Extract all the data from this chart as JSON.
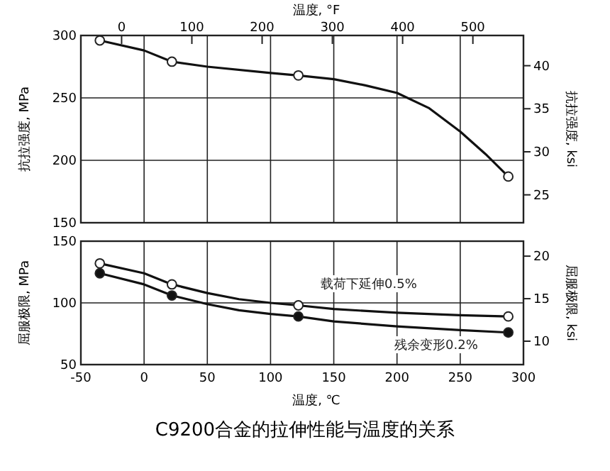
{
  "chart_data": [
    {
      "type": "line",
      "x2label": "温度, °F",
      "ylabel": "抗拉强度, MPa",
      "y2label": "抗拉强度, ksi",
      "xlim": [
        -50,
        300
      ],
      "xticks": [
        -50,
        0,
        50,
        100,
        150,
        200,
        250,
        300
      ],
      "tick_labels": "y",
      "x2lim": [
        -58,
        572
      ],
      "x2ticks": [
        0,
        100,
        200,
        300,
        400,
        500
      ],
      "ylim": [
        150,
        300
      ],
      "yticks": [
        150,
        200,
        250,
        300
      ],
      "y2lim": [
        21.76,
        43.51
      ],
      "y2ticks": [
        25,
        30,
        35,
        40
      ],
      "grid": true,
      "series": [
        {
          "color": "#111111",
          "marker": "none",
          "x": [
            -35,
            0,
            22,
            50,
            100,
            122,
            150,
            175,
            200,
            225,
            250,
            270,
            288
          ],
          "values": [
            296,
            288,
            279,
            275,
            270,
            268,
            265,
            260,
            254,
            242,
            223,
            205,
            187
          ]
        },
        {
          "type": "scatter",
          "color": "#ffffff",
          "marker": "circle",
          "x": [
            -35,
            22,
            122,
            288
          ],
          "values": [
            296,
            279,
            268,
            187
          ]
        }
      ]
    },
    {
      "type": "line",
      "xlabel": "温度, ℃",
      "ylabel": "屈服极限, MPa",
      "y2label": "屈服极限, ksi",
      "title": "C9200合金的拉伸性能与温度的关系",
      "xlim": [
        -50,
        300
      ],
      "xticks": [
        -50,
        0,
        50,
        100,
        150,
        200,
        250,
        300
      ],
      "ylim": [
        50,
        150
      ],
      "yticks": [
        50,
        100,
        150
      ],
      "y2lim": [
        7.25,
        21.76
      ],
      "y2ticks": [
        10,
        15,
        20
      ],
      "grid": true,
      "annotations": [
        "载荷下延伸0.5%",
        "残余变形0.2%"
      ],
      "series": [
        {
          "color": "#111111",
          "marker": "none",
          "x": [
            -35,
            0,
            22,
            50,
            75,
            100,
            122,
            150,
            200,
            250,
            288
          ],
          "values": [
            132,
            124,
            115,
            108,
            103,
            100,
            98,
            95,
            92,
            90,
            89
          ]
        },
        {
          "type": "scatter",
          "color": "#ffffff",
          "marker": "circle",
          "x": [
            -35,
            22,
            122,
            288
          ],
          "values": [
            132,
            115,
            98,
            89
          ]
        },
        {
          "color": "#111111",
          "marker": "none",
          "x": [
            -35,
            0,
            22,
            50,
            75,
            100,
            122,
            150,
            200,
            250,
            288
          ],
          "values": [
            124,
            115,
            106,
            99,
            94,
            91,
            89,
            85,
            81,
            78,
            76
          ]
        },
        {
          "type": "scatter",
          "color": "#111111",
          "marker": "circle",
          "x": [
            -35,
            22,
            122,
            288
          ],
          "values": [
            124,
            106,
            89,
            76
          ]
        }
      ]
    }
  ]
}
